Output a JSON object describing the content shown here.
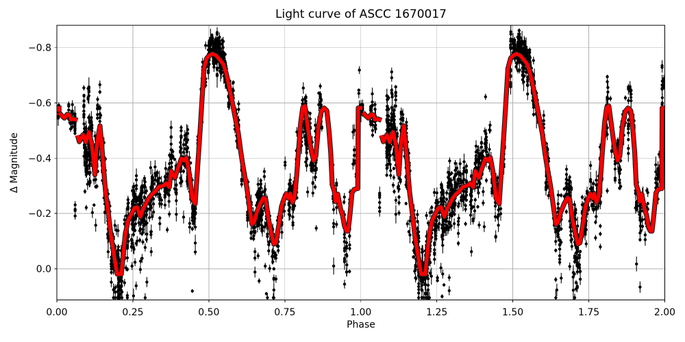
{
  "figure": {
    "title": "Light curve of ASCC 1670017",
    "xlabel": "Phase",
    "ylabel": "Δ Magnitude"
  },
  "chart_data": {
    "type": "scatter",
    "title": "Light curve of ASCC 1670017",
    "xlabel": "Phase",
    "ylabel": "Δ Magnitude",
    "legend": "none",
    "grid": true,
    "grid_color": "#b0b0b0",
    "scatter_color": "#000000",
    "line_color": "#ff0000",
    "line_edge_color": "#1a1a1a",
    "background": "#ffffff",
    "xlim": [
      0.0,
      2.0
    ],
    "ylim_top": -0.881,
    "ylim_bottom": 0.113,
    "y_inverted": true,
    "xtick_vals": [
      0.0,
      0.25,
      0.5,
      0.75,
      1.0,
      1.25,
      1.5,
      1.75,
      2.0
    ],
    "xtick_labels": [
      "0.00",
      "0.25",
      "0.50",
      "0.75",
      "1.00",
      "1.25",
      "1.50",
      "1.75",
      "2.00"
    ],
    "ytick_vals": [
      -0.8,
      -0.6,
      -0.4,
      -0.2,
      0.0
    ],
    "ytick_labels": [
      "−0.8",
      "−0.6",
      "−0.4",
      "−0.2",
      "0.0"
    ],
    "period_repeat": [
      0,
      1
    ],
    "seed": 1670017,
    "start_marker": {
      "phase": 0.004,
      "mag": -0.578
    },
    "smoothed_line": {
      "segments": [
        {
          "name": "phase-start-dash",
          "points": [
            [
              0.007,
              -0.565
            ],
            [
              0.018,
              -0.552
            ],
            [
              0.025,
              -0.545
            ],
            [
              0.034,
              -0.559
            ],
            [
              0.041,
              -0.557
            ],
            [
              0.047,
              -0.54
            ],
            [
              0.056,
              -0.542
            ],
            [
              0.068,
              -0.537
            ]
          ]
        },
        {
          "name": "main-binned-curve",
          "points": [
            [
              0.068,
              -0.483
            ],
            [
              0.074,
              -0.46
            ],
            [
              0.086,
              -0.485
            ],
            [
              0.095,
              -0.458
            ],
            [
              0.106,
              -0.495
            ],
            [
              0.115,
              -0.45
            ],
            [
              0.121,
              -0.39
            ],
            [
              0.125,
              -0.34
            ],
            [
              0.13,
              -0.43
            ],
            [
              0.136,
              -0.48
            ],
            [
              0.142,
              -0.517
            ],
            [
              0.151,
              -0.403
            ],
            [
              0.16,
              -0.28
            ],
            [
              0.169,
              -0.205
            ],
            [
              0.178,
              -0.119
            ],
            [
              0.187,
              -0.057
            ],
            [
              0.196,
              0.005
            ],
            [
              0.199,
              0.02
            ],
            [
              0.212,
              0.02
            ],
            [
              0.219,
              -0.057
            ],
            [
              0.225,
              -0.124
            ],
            [
              0.234,
              -0.173
            ],
            [
              0.243,
              -0.193
            ],
            [
              0.255,
              -0.22
            ],
            [
              0.264,
              -0.223
            ],
            [
              0.275,
              -0.188
            ],
            [
              0.284,
              -0.218
            ],
            [
              0.293,
              -0.235
            ],
            [
              0.302,
              -0.255
            ],
            [
              0.313,
              -0.27
            ],
            [
              0.324,
              -0.28
            ],
            [
              0.336,
              -0.297
            ],
            [
              0.349,
              -0.3
            ],
            [
              0.36,
              -0.309
            ],
            [
              0.37,
              -0.295
            ],
            [
              0.376,
              -0.354
            ],
            [
              0.388,
              -0.329
            ],
            [
              0.399,
              -0.366
            ],
            [
              0.41,
              -0.399
            ],
            [
              0.419,
              -0.391
            ],
            [
              0.426,
              -0.403
            ],
            [
              0.435,
              -0.349
            ],
            [
              0.445,
              -0.255
            ],
            [
              0.455,
              -0.235
            ],
            [
              0.471,
              -0.495
            ],
            [
              0.478,
              -0.619
            ],
            [
              0.484,
              -0.725
            ],
            [
              0.493,
              -0.762
            ],
            [
              0.5,
              -0.77
            ],
            [
              0.512,
              -0.778
            ],
            [
              0.524,
              -0.772
            ],
            [
              0.535,
              -0.758
            ],
            [
              0.548,
              -0.74
            ],
            [
              0.557,
              -0.708
            ],
            [
              0.566,
              -0.663
            ],
            [
              0.575,
              -0.614
            ],
            [
              0.586,
              -0.552
            ],
            [
              0.597,
              -0.49
            ],
            [
              0.606,
              -0.416
            ],
            [
              0.615,
              -0.354
            ],
            [
              0.624,
              -0.3
            ],
            [
              0.633,
              -0.23
            ],
            [
              0.642,
              -0.161
            ],
            [
              0.649,
              -0.168
            ],
            [
              0.658,
              -0.205
            ],
            [
              0.669,
              -0.235
            ],
            [
              0.68,
              -0.257
            ],
            [
              0.687,
              -0.252
            ],
            [
              0.696,
              -0.181
            ],
            [
              0.705,
              -0.131
            ],
            [
              0.714,
              -0.089
            ],
            [
              0.721,
              -0.094
            ],
            [
              0.73,
              -0.156
            ],
            [
              0.739,
              -0.225
            ],
            [
              0.748,
              -0.255
            ],
            [
              0.755,
              -0.272
            ],
            [
              0.762,
              -0.255
            ],
            [
              0.768,
              -0.272
            ],
            [
              0.775,
              -0.24
            ],
            [
              0.782,
              -0.26
            ],
            [
              0.789,
              -0.337
            ],
            [
              0.795,
              -0.428
            ],
            [
              0.802,
              -0.527
            ],
            [
              0.809,
              -0.584
            ],
            [
              0.816,
              -0.589
            ],
            [
              0.822,
              -0.54
            ],
            [
              0.831,
              -0.465
            ],
            [
              0.838,
              -0.421
            ],
            [
              0.845,
              -0.391
            ],
            [
              0.852,
              -0.408
            ],
            [
              0.861,
              -0.52
            ],
            [
              0.87,
              -0.569
            ],
            [
              0.879,
              -0.582
            ],
            [
              0.888,
              -0.572
            ],
            [
              0.895,
              -0.502
            ],
            [
              0.901,
              -0.421
            ],
            [
              0.906,
              -0.304
            ],
            [
              0.913,
              -0.28
            ],
            [
              0.917,
              -0.243
            ],
            [
              0.924,
              -0.27
            ],
            [
              0.933,
              -0.218
            ],
            [
              0.94,
              -0.193
            ],
            [
              0.946,
              -0.156
            ],
            [
              0.953,
              -0.136
            ],
            [
              0.958,
              -0.136
            ],
            [
              0.964,
              -0.193
            ],
            [
              0.971,
              -0.275
            ],
            [
              0.978,
              -0.287
            ],
            [
              0.987,
              -0.29
            ],
            [
              0.99,
              -0.29
            ],
            [
              0.9915,
              -0.582
            ],
            [
              1.005,
              -0.582
            ]
          ]
        }
      ]
    },
    "scatter_clusters": [
      {
        "p0": 0.0,
        "p1": 0.012,
        "n": 12,
        "sigma": 0.012,
        "bias": 0.0
      },
      {
        "p0": 0.028,
        "p1": 0.062,
        "n": 30,
        "sigma": 0.03,
        "bias": 0.005
      },
      {
        "p0": 0.052,
        "p1": 0.068,
        "n": 8,
        "sigma": 0.04,
        "bias": 0.25
      },
      {
        "p0": 0.085,
        "p1": 0.165,
        "n": 260,
        "sigma": 0.055,
        "bias": 0.01,
        "tail": 0.06,
        "tailmax": 0.25
      },
      {
        "p0": 0.095,
        "p1": 0.15,
        "n": 18,
        "sigma": 0.035,
        "bias": -0.13
      },
      {
        "p0": 0.165,
        "p1": 0.215,
        "n": 170,
        "sigma": 0.055,
        "bias": 0.02,
        "tail": 0.1,
        "tailmax": 0.12
      },
      {
        "p0": 0.215,
        "p1": 0.305,
        "n": 260,
        "sigma": 0.05,
        "bias": 0.01,
        "tail": 0.1,
        "tailmax": 0.3
      },
      {
        "p0": 0.305,
        "p1": 0.385,
        "n": 170,
        "sigma": 0.045,
        "bias": 0.0,
        "tail": 0.05,
        "tailmax": 0.25
      },
      {
        "p0": 0.385,
        "p1": 0.455,
        "n": 150,
        "sigma": 0.04,
        "bias": 0.0,
        "tail": 0.04,
        "tailmax": 0.28
      },
      {
        "p0": 0.405,
        "p1": 0.435,
        "n": 12,
        "sigma": 0.05,
        "bias": -0.1
      },
      {
        "p0": 0.455,
        "p1": 0.498,
        "n": 55,
        "sigma": 0.055,
        "bias": 0.02
      },
      {
        "p0": 0.498,
        "p1": 0.565,
        "n": 280,
        "sigma": 0.026,
        "bias": -0.012
      },
      {
        "p0": 0.505,
        "p1": 0.545,
        "n": 14,
        "sigma": 0.02,
        "bias": -0.055
      },
      {
        "p0": 0.565,
        "p1": 0.635,
        "n": 110,
        "sigma": 0.035,
        "bias": 0.0
      },
      {
        "p0": 0.635,
        "p1": 0.725,
        "n": 230,
        "sigma": 0.048,
        "bias": 0.015,
        "tail": 0.1,
        "tailmax": 0.3
      },
      {
        "p0": 0.725,
        "p1": 0.788,
        "n": 120,
        "sigma": 0.04,
        "bias": 0.005
      },
      {
        "p0": 0.788,
        "p1": 0.825,
        "n": 95,
        "sigma": 0.05,
        "bias": 0.01,
        "tail": 0.05,
        "tailmax": 0.3
      },
      {
        "p0": 0.825,
        "p1": 0.905,
        "n": 130,
        "sigma": 0.045,
        "bias": 0.005,
        "tail": 0.04,
        "tailmax": 0.25
      },
      {
        "p0": 0.905,
        "p1": 0.965,
        "n": 70,
        "sigma": 0.05,
        "bias": 0.04,
        "tail": 0.12,
        "tailmax": 0.25
      },
      {
        "p0": 0.962,
        "p1": 1.0,
        "n": 50,
        "sigma": 0.06,
        "bias": -0.09
      }
    ],
    "mag_clip": [
      -0.862,
      0.105
    ]
  }
}
